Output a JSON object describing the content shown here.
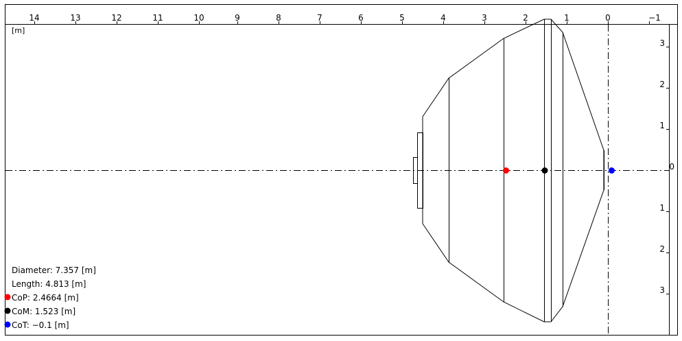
{
  "view": {
    "unit_label": "[m]",
    "x_ticks": [
      "14",
      "13",
      "12",
      "11",
      "10",
      "9",
      "8",
      "7",
      "6",
      "5",
      "4",
      "3",
      "2",
      "1",
      "0",
      "−1"
    ],
    "y_ticks_upper": [
      "3",
      "2",
      "1",
      "0"
    ],
    "y_ticks_lower": [
      "1",
      "2",
      "3"
    ]
  },
  "info": {
    "diameter": "Diameter: 7.357 [m]",
    "length": "Length: 4.813 [m]",
    "cop": "CoP: 2.4664 [m]",
    "com": "CoM: 1.523 [m]",
    "cot": "CoT: −0.1 [m]"
  },
  "markers": [
    {
      "name": "cop-marker",
      "x_m": 2.4664,
      "color": "#ff0000"
    },
    {
      "name": "com-marker",
      "x_m": 1.523,
      "color": "#000000"
    },
    {
      "name": "cot-marker",
      "x_m": -0.1,
      "color": "#0000ff"
    }
  ],
  "colors": {
    "cop": "#ff0000",
    "com": "#000000",
    "cot": "#0000ff"
  }
}
